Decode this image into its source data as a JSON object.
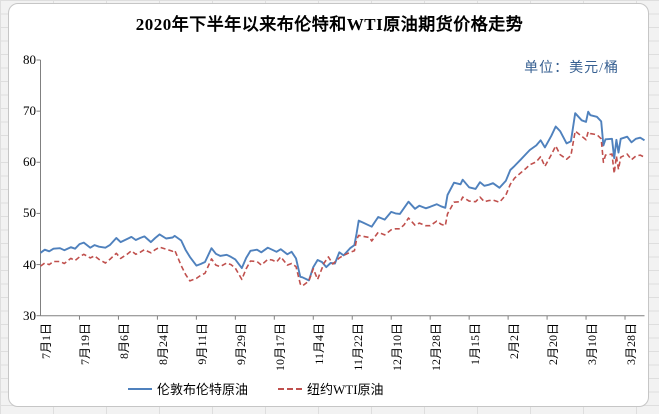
{
  "title": "2020年下半年以来布伦特和WTI原油期货价格走势",
  "unit_label": "单位：美元/桶",
  "colors": {
    "axis": "#808080",
    "text": "#000000",
    "unit_text": "#365f91",
    "chart_border": "#c6c6c6",
    "brent_blue": "#4f81bd",
    "wti_red": "#c0504d"
  },
  "chart_data": {
    "type": "line",
    "title": "2020年下半年以来布伦特和WTI原油期货价格走势",
    "unit": "美元/桶",
    "xlabel": "",
    "ylabel": "",
    "ylim": [
      30,
      80
    ],
    "yticks": [
      30,
      40,
      50,
      60,
      70,
      80
    ],
    "grid": false,
    "legend_position": "bottom",
    "x_is_day_index_from_jul1": true,
    "x_day_range": [
      0,
      279
    ],
    "x_tick_interval_days": 18,
    "x_tick_labels": [
      "7月1日",
      "7月19日",
      "8月6日",
      "8月24日",
      "9月11日",
      "9月29日",
      "10月17日",
      "11月4日",
      "11月22日",
      "12月10日",
      "12月28日",
      "1月15日",
      "2月2日",
      "2月20日",
      "3月10日",
      "3月28日"
    ],
    "series": [
      {
        "name": "伦敦布伦特原油",
        "color": "#4f81bd",
        "style": "solid",
        "points": [
          [
            0,
            42.3
          ],
          [
            2,
            42.9
          ],
          [
            4,
            42.6
          ],
          [
            6,
            43.1
          ],
          [
            9,
            43.2
          ],
          [
            11,
            42.8
          ],
          [
            14,
            43.4
          ],
          [
            16,
            43.1
          ],
          [
            18,
            44.0
          ],
          [
            20,
            44.3
          ],
          [
            23,
            43.3
          ],
          [
            25,
            43.8
          ],
          [
            27,
            43.5
          ],
          [
            30,
            43.3
          ],
          [
            32,
            43.8
          ],
          [
            35,
            45.2
          ],
          [
            37,
            44.4
          ],
          [
            40,
            45.0
          ],
          [
            42,
            45.4
          ],
          [
            44,
            44.8
          ],
          [
            46,
            45.2
          ],
          [
            48,
            45.5
          ],
          [
            51,
            44.4
          ],
          [
            53,
            45.2
          ],
          [
            55,
            45.9
          ],
          [
            58,
            45.1
          ],
          [
            61,
            45.3
          ],
          [
            62,
            45.6
          ],
          [
            65,
            44.7
          ],
          [
            67,
            42.9
          ],
          [
            69,
            41.5
          ],
          [
            72,
            39.8
          ],
          [
            74,
            40.1
          ],
          [
            76,
            40.5
          ],
          [
            79,
            43.2
          ],
          [
            81,
            42.1
          ],
          [
            83,
            41.7
          ],
          [
            86,
            41.9
          ],
          [
            88,
            41.5
          ],
          [
            90,
            41.0
          ],
          [
            93,
            39.3
          ],
          [
            95,
            41.3
          ],
          [
            97,
            42.7
          ],
          [
            100,
            42.9
          ],
          [
            102,
            42.4
          ],
          [
            105,
            43.3
          ],
          [
            107,
            42.9
          ],
          [
            109,
            42.5
          ],
          [
            111,
            43.0
          ],
          [
            114,
            42.0
          ],
          [
            116,
            42.5
          ],
          [
            118,
            41.2
          ],
          [
            120,
            37.6
          ],
          [
            121,
            37.5
          ],
          [
            124,
            36.9
          ],
          [
            126,
            39.5
          ],
          [
            128,
            40.9
          ],
          [
            130,
            40.5
          ],
          [
            132,
            39.5
          ],
          [
            134,
            40.3
          ],
          [
            136,
            40.2
          ],
          [
            138,
            42.4
          ],
          [
            140,
            41.8
          ],
          [
            143,
            43.2
          ],
          [
            145,
            43.8
          ],
          [
            146,
            46.1
          ],
          [
            147,
            48.6
          ],
          [
            149,
            48.2
          ],
          [
            152,
            47.6
          ],
          [
            153,
            47.4
          ],
          [
            156,
            49.3
          ],
          [
            159,
            48.8
          ],
          [
            162,
            50.3
          ],
          [
            164,
            50.0
          ],
          [
            166,
            49.9
          ],
          [
            168,
            51.1
          ],
          [
            170,
            52.3
          ],
          [
            173,
            50.9
          ],
          [
            175,
            51.5
          ],
          [
            178,
            51.0
          ],
          [
            180,
            51.3
          ],
          [
            183,
            51.8
          ],
          [
            185,
            51.4
          ],
          [
            187,
            51.1
          ],
          [
            188,
            53.6
          ],
          [
            191,
            56.0
          ],
          [
            194,
            55.7
          ],
          [
            195,
            56.6
          ],
          [
            198,
            55.1
          ],
          [
            201,
            54.8
          ],
          [
            203,
            56.1
          ],
          [
            205,
            55.4
          ],
          [
            207,
            55.6
          ],
          [
            209,
            55.9
          ],
          [
            212,
            55.0
          ],
          [
            215,
            56.4
          ],
          [
            217,
            58.5
          ],
          [
            219,
            59.3
          ],
          [
            222,
            60.6
          ],
          [
            224,
            61.5
          ],
          [
            226,
            62.4
          ],
          [
            229,
            63.3
          ],
          [
            231,
            64.3
          ],
          [
            233,
            62.9
          ],
          [
            236,
            65.2
          ],
          [
            238,
            67.0
          ],
          [
            240,
            66.1
          ],
          [
            243,
            63.7
          ],
          [
            245,
            64.1
          ],
          [
            247,
            69.6
          ],
          [
            250,
            68.2
          ],
          [
            252,
            67.9
          ],
          [
            253,
            69.9
          ],
          [
            254,
            69.2
          ],
          [
            257,
            68.9
          ],
          [
            259,
            68.0
          ],
          [
            260,
            63.3
          ],
          [
            261,
            64.5
          ],
          [
            264,
            64.6
          ],
          [
            265,
            60.8
          ],
          [
            266,
            64.4
          ],
          [
            267,
            61.9
          ],
          [
            268,
            64.6
          ],
          [
            271,
            65.0
          ],
          [
            273,
            63.9
          ],
          [
            275,
            64.6
          ],
          [
            277,
            64.8
          ],
          [
            279,
            64.3
          ]
        ]
      },
      {
        "name": "纽约WTI原油",
        "color": "#c0504d",
        "style": "dashed",
        "points": [
          [
            0,
            39.7
          ],
          [
            2,
            40.3
          ],
          [
            4,
            40.0
          ],
          [
            6,
            40.6
          ],
          [
            9,
            40.6
          ],
          [
            11,
            40.2
          ],
          [
            14,
            41.2
          ],
          [
            16,
            40.8
          ],
          [
            18,
            41.5
          ],
          [
            20,
            42.0
          ],
          [
            23,
            41.3
          ],
          [
            25,
            41.7
          ],
          [
            27,
            41.0
          ],
          [
            30,
            40.3
          ],
          [
            32,
            41.0
          ],
          [
            35,
            42.2
          ],
          [
            37,
            41.2
          ],
          [
            40,
            42.0
          ],
          [
            42,
            42.7
          ],
          [
            44,
            42.0
          ],
          [
            46,
            42.4
          ],
          [
            48,
            42.9
          ],
          [
            51,
            42.3
          ],
          [
            53,
            42.9
          ],
          [
            55,
            43.4
          ],
          [
            58,
            43.0
          ],
          [
            61,
            42.6
          ],
          [
            62,
            42.8
          ],
          [
            65,
            39.8
          ],
          [
            67,
            38.1
          ],
          [
            69,
            36.8
          ],
          [
            72,
            37.3
          ],
          [
            74,
            37.9
          ],
          [
            76,
            38.3
          ],
          [
            79,
            41.1
          ],
          [
            81,
            39.9
          ],
          [
            83,
            39.6
          ],
          [
            86,
            40.3
          ],
          [
            88,
            40.0
          ],
          [
            90,
            39.3
          ],
          [
            93,
            37.1
          ],
          [
            95,
            39.2
          ],
          [
            97,
            40.7
          ],
          [
            100,
            40.6
          ],
          [
            102,
            39.9
          ],
          [
            105,
            41.0
          ],
          [
            107,
            40.9
          ],
          [
            109,
            40.5
          ],
          [
            111,
            41.5
          ],
          [
            114,
            39.9
          ],
          [
            116,
            40.2
          ],
          [
            118,
            39.6
          ],
          [
            120,
            36.2
          ],
          [
            121,
            35.8
          ],
          [
            124,
            36.8
          ],
          [
            126,
            39.2
          ],
          [
            128,
            37.1
          ],
          [
            131,
            40.3
          ],
          [
            133,
            41.5
          ],
          [
            135,
            40.1
          ],
          [
            138,
            41.3
          ],
          [
            140,
            41.8
          ],
          [
            143,
            42.4
          ],
          [
            145,
            42.7
          ],
          [
            146,
            44.9
          ],
          [
            147,
            45.7
          ],
          [
            149,
            45.5
          ],
          [
            152,
            45.3
          ],
          [
            153,
            44.6
          ],
          [
            156,
            46.3
          ],
          [
            159,
            45.8
          ],
          [
            162,
            46.8
          ],
          [
            164,
            47.0
          ],
          [
            166,
            47.0
          ],
          [
            168,
            47.8
          ],
          [
            170,
            49.1
          ],
          [
            173,
            47.7
          ],
          [
            175,
            48.1
          ],
          [
            178,
            47.6
          ],
          [
            180,
            47.6
          ],
          [
            183,
            48.5
          ],
          [
            185,
            47.9
          ],
          [
            187,
            47.6
          ],
          [
            188,
            49.9
          ],
          [
            191,
            52.2
          ],
          [
            194,
            52.3
          ],
          [
            195,
            53.2
          ],
          [
            198,
            52.4
          ],
          [
            201,
            52.3
          ],
          [
            203,
            53.2
          ],
          [
            205,
            52.3
          ],
          [
            207,
            52.5
          ],
          [
            209,
            52.6
          ],
          [
            212,
            52.2
          ],
          [
            215,
            53.6
          ],
          [
            217,
            55.7
          ],
          [
            219,
            56.9
          ],
          [
            222,
            58.0
          ],
          [
            224,
            58.7
          ],
          [
            226,
            59.5
          ],
          [
            229,
            60.1
          ],
          [
            231,
            61.1
          ],
          [
            233,
            59.2
          ],
          [
            236,
            61.5
          ],
          [
            238,
            63.2
          ],
          [
            240,
            61.5
          ],
          [
            243,
            60.6
          ],
          [
            245,
            61.3
          ],
          [
            247,
            66.1
          ],
          [
            250,
            65.1
          ],
          [
            252,
            64.4
          ],
          [
            253,
            66.0
          ],
          [
            254,
            65.6
          ],
          [
            257,
            65.4
          ],
          [
            259,
            64.6
          ],
          [
            260,
            60.0
          ],
          [
            261,
            61.4
          ],
          [
            264,
            61.6
          ],
          [
            265,
            57.8
          ],
          [
            266,
            61.2
          ],
          [
            267,
            58.6
          ],
          [
            268,
            61.0
          ],
          [
            271,
            61.6
          ],
          [
            273,
            60.5
          ],
          [
            275,
            61.2
          ],
          [
            277,
            61.4
          ],
          [
            279,
            61.0
          ]
        ]
      }
    ]
  }
}
